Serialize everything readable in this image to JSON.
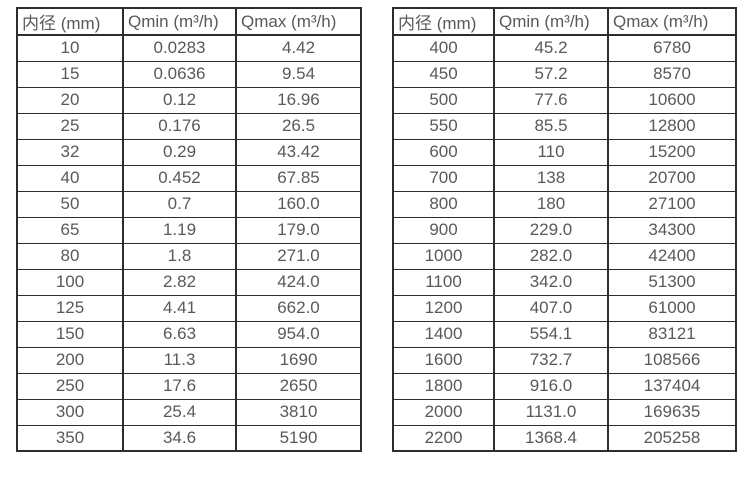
{
  "style": {
    "background_color": "#ffffff",
    "border_color": "#2d2d2d",
    "text_color": "#595959"
  },
  "chart_data": [
    {
      "type": "table",
      "columns": [
        "内径 (mm)",
        "Qmin (m³/h)",
        "Qmax (m³/h)"
      ],
      "rows": [
        [
          "10",
          "0.0283",
          "4.42"
        ],
        [
          "15",
          "0.0636",
          "9.54"
        ],
        [
          "20",
          "0.12",
          "16.96"
        ],
        [
          "25",
          "0.176",
          "26.5"
        ],
        [
          "32",
          "0.29",
          "43.42"
        ],
        [
          "40",
          "0.452",
          "67.85"
        ],
        [
          "50",
          "0.7",
          "160.0"
        ],
        [
          "65",
          "1.19",
          "179.0"
        ],
        [
          "80",
          "1.8",
          "271.0"
        ],
        [
          "100",
          "2.82",
          "424.0"
        ],
        [
          "125",
          "4.41",
          "662.0"
        ],
        [
          "150",
          "6.63",
          "954.0"
        ],
        [
          "200",
          "11.3",
          "1690"
        ],
        [
          "250",
          "17.6",
          "2650"
        ],
        [
          "300",
          "25.4",
          "3810"
        ],
        [
          "350",
          "34.6",
          "5190"
        ]
      ]
    },
    {
      "type": "table",
      "columns": [
        "内径 (mm)",
        "Qmin (m³/h)",
        "Qmax (m³/h)"
      ],
      "rows": [
        [
          "400",
          "45.2",
          "6780"
        ],
        [
          "450",
          "57.2",
          "8570"
        ],
        [
          "500",
          "77.6",
          "10600"
        ],
        [
          "550",
          "85.5",
          "12800"
        ],
        [
          "600",
          "110",
          "15200"
        ],
        [
          "700",
          "138",
          "20700"
        ],
        [
          "800",
          "180",
          "27100"
        ],
        [
          "900",
          "229.0",
          "34300"
        ],
        [
          "1000",
          "282.0",
          "42400"
        ],
        [
          "1100",
          "342.0",
          "51300"
        ],
        [
          "1200",
          "407.0",
          "61000"
        ],
        [
          "1400",
          "554.1",
          "83121"
        ],
        [
          "1600",
          "732.7",
          "108566"
        ],
        [
          "1800",
          "916.0",
          "137404"
        ],
        [
          "2000",
          "1131.0",
          "169635"
        ],
        [
          "2200",
          "1368.4",
          "205258"
        ]
      ]
    }
  ]
}
